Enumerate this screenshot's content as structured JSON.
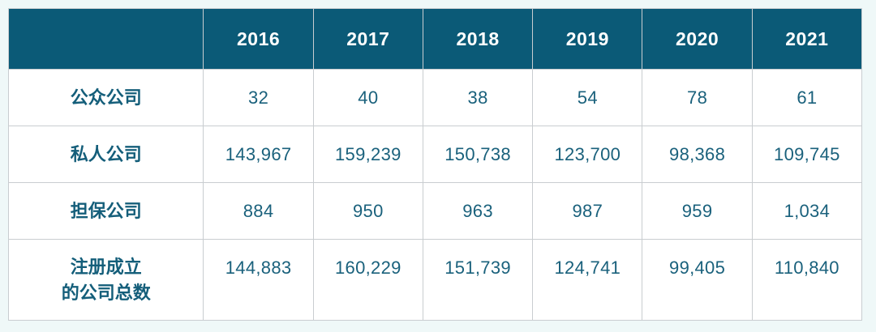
{
  "colors": {
    "page_bg": "#eff8f8",
    "header_bg": "#0b5a77",
    "header_text": "#ffffff",
    "label_text": "#145e7a",
    "number_text": "#1a617c",
    "cell_border": "#c9cdd0",
    "cell_bg": "#ffffff"
  },
  "chart_data": {
    "type": "table",
    "title": "",
    "columns": [
      "",
      "2016",
      "2017",
      "2018",
      "2019",
      "2020",
      "2021"
    ],
    "rows": [
      {
        "label": "公众公司",
        "values": [
          32,
          40,
          38,
          54,
          78,
          61
        ]
      },
      {
        "label": "私人公司",
        "values": [
          143967,
          159239,
          150738,
          123700,
          98368,
          109745
        ]
      },
      {
        "label": "担保公司",
        "values": [
          884,
          950,
          963,
          987,
          959,
          1034
        ]
      },
      {
        "label": "注册成立的公司总数",
        "values": [
          144883,
          160229,
          151739,
          124741,
          99405,
          110840
        ]
      }
    ]
  },
  "table": {
    "header": {
      "blank": "",
      "years": [
        "2016",
        "2017",
        "2018",
        "2019",
        "2020",
        "2021"
      ]
    },
    "rows": [
      {
        "label": "公众公司",
        "cells": [
          "32",
          "40",
          "38",
          "54",
          "78",
          "61"
        ]
      },
      {
        "label": "私人公司",
        "cells": [
          "143,967",
          "159,239",
          "150,738",
          "123,700",
          "98,368",
          "109,745"
        ]
      },
      {
        "label": "担保公司",
        "cells": [
          "884",
          "950",
          "963",
          "987",
          "959",
          "1,034"
        ]
      },
      {
        "label": "注册成立\n的公司总数",
        "cells": [
          "144,883",
          "160,229",
          "151,739",
          "124,741",
          "99,405",
          "110,840"
        ]
      }
    ]
  }
}
